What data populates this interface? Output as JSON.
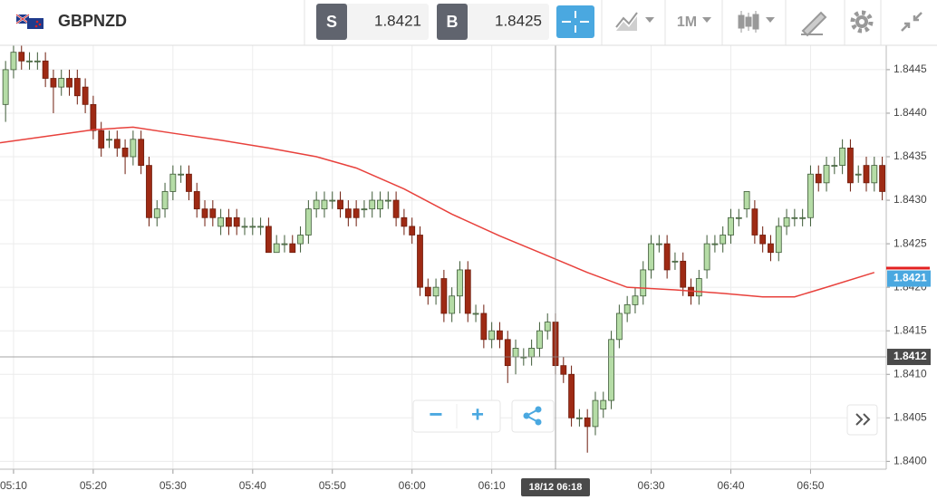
{
  "toolbar": {
    "symbol": "GBPNZD",
    "sell": {
      "label": "S",
      "price": "1.8421"
    },
    "buy": {
      "label": "B",
      "price": "1.8425"
    },
    "timeframe": "1M"
  },
  "zoom_controls": {
    "zoom_out": "−",
    "zoom_in": "+"
  },
  "chart_data": {
    "type": "candlestick",
    "x": [
      309,
      310,
      311,
      312,
      313,
      314,
      315,
      316,
      317,
      318,
      319,
      320,
      321,
      322,
      323,
      324,
      325,
      326,
      327,
      328,
      329,
      330,
      331,
      332,
      333,
      334,
      335,
      336,
      337,
      338,
      339,
      340,
      341,
      342,
      343,
      344,
      345,
      346,
      347,
      348,
      349,
      350,
      351,
      352,
      353,
      354,
      355,
      356,
      357,
      358,
      359,
      360,
      361,
      362,
      363,
      364,
      365,
      366,
      367,
      368,
      369,
      370,
      371,
      372,
      373,
      374,
      375,
      376,
      377,
      378,
      379,
      380,
      381,
      382,
      383,
      384,
      385,
      386,
      387,
      388,
      389,
      390,
      391,
      392,
      393,
      394,
      395,
      396,
      397,
      398,
      399,
      400,
      401,
      402,
      403,
      404,
      405,
      406,
      407,
      408,
      409,
      410,
      411,
      412,
      413,
      414,
      415,
      416,
      417,
      418,
      419
    ],
    "open": [
      1.8441,
      1.8445,
      1.8447,
      1.8446,
      1.8446,
      1.8446,
      1.8444,
      1.8443,
      1.8444,
      1.8444,
      1.8443,
      1.8441,
      1.8438,
      1.8437,
      1.8437,
      1.8436,
      1.8435,
      1.8437,
      1.8434,
      1.8428,
      1.8429,
      1.8431,
      1.8433,
      1.8433,
      1.8431,
      1.8429,
      1.8429,
      1.8427,
      1.8428,
      1.8428,
      1.8427,
      1.8427,
      1.8427,
      1.8427,
      1.8424,
      1.8425,
      1.8425,
      1.8425,
      1.8426,
      1.8429,
      1.8429,
      1.843,
      1.843,
      1.8429,
      1.8429,
      1.8429,
      1.8429,
      1.8429,
      1.843,
      1.843,
      1.8428,
      1.8427,
      1.8426,
      1.842,
      1.8419,
      1.8421,
      1.8417,
      1.8419,
      1.8422,
      1.8417,
      1.8417,
      1.8414,
      1.8415,
      1.8414,
      1.8412,
      1.8412,
      1.8412,
      1.8413,
      1.8415,
      1.8416,
      1.8411,
      1.841,
      1.8405,
      1.8405,
      1.8404,
      1.8406,
      1.8407,
      1.8414,
      1.8417,
      1.8418,
      1.8419,
      1.8422,
      1.8425,
      1.8425,
      1.8423,
      1.8423,
      1.842,
      1.8419,
      1.8422,
      1.8425,
      1.8425,
      1.8426,
      1.8428,
      1.8429,
      1.8429,
      1.8426,
      1.8425,
      1.8424,
      1.8427,
      1.8428,
      1.8428,
      1.8428,
      1.8433,
      1.8432,
      1.8434,
      1.8434,
      1.8436,
      1.8433,
      1.8434,
      1.8432,
      1.8434
    ],
    "high": [
      1.8446,
      1.8448,
      1.8448,
      1.8447,
      1.8447,
      1.8447,
      1.8445,
      1.8445,
      1.8445,
      1.8445,
      1.8444,
      1.8442,
      1.8439,
      1.8438,
      1.8438,
      1.8437,
      1.8438,
      1.8438,
      1.8435,
      1.843,
      1.8432,
      1.8434,
      1.8434,
      1.8434,
      1.8432,
      1.843,
      1.843,
      1.8429,
      1.8429,
      1.8429,
      1.8428,
      1.8428,
      1.8428,
      1.8428,
      1.8426,
      1.8426,
      1.8426,
      1.8427,
      1.843,
      1.8431,
      1.8431,
      1.8431,
      1.8431,
      1.843,
      1.843,
      1.843,
      1.8431,
      1.8431,
      1.8431,
      1.8431,
      1.8429,
      1.8428,
      1.8427,
      1.8421,
      1.8421,
      1.8422,
      1.842,
      1.8423,
      1.8423,
      1.8418,
      1.8418,
      1.8416,
      1.8416,
      1.8415,
      1.8414,
      1.8413,
      1.8414,
      1.8416,
      1.8417,
      1.8417,
      1.8412,
      1.8411,
      1.8406,
      1.8406,
      1.8408,
      1.8408,
      1.8415,
      1.8418,
      1.8419,
      1.842,
      1.8423,
      1.8426,
      1.8426,
      1.8426,
      1.8424,
      1.8424,
      1.8421,
      1.8422,
      1.8426,
      1.8426,
      1.8427,
      1.8429,
      1.8429,
      1.8431,
      1.843,
      1.8427,
      1.8426,
      1.8428,
      1.8429,
      1.8429,
      1.8429,
      1.8434,
      1.8434,
      1.8435,
      1.8435,
      1.8437,
      1.8437,
      1.8434,
      1.8435,
      1.8435,
      1.8435
    ],
    "low": [
      1.8439,
      1.8444,
      1.8445,
      1.8445,
      1.8445,
      1.8443,
      1.844,
      1.8442,
      1.8442,
      1.8441,
      1.844,
      1.8437,
      1.8435,
      1.8436,
      1.8435,
      1.8433,
      1.8434,
      1.8433,
      1.8427,
      1.8427,
      1.8428,
      1.843,
      1.8432,
      1.843,
      1.8428,
      1.8427,
      1.8427,
      1.8426,
      1.8426,
      1.8426,
      1.8426,
      1.8426,
      1.8426,
      1.8424,
      1.8424,
      1.8424,
      1.8424,
      1.8424,
      1.8425,
      1.8428,
      1.8428,
      1.8429,
      1.8428,
      1.8427,
      1.8427,
      1.8428,
      1.8428,
      1.8428,
      1.8429,
      1.8427,
      1.8426,
      1.8425,
      1.8419,
      1.8418,
      1.8418,
      1.8416,
      1.8416,
      1.8417,
      1.8416,
      1.8416,
      1.8413,
      1.8413,
      1.8413,
      1.8409,
      1.841,
      1.8411,
      1.8411,
      1.8412,
      1.8414,
      1.841,
      1.8409,
      1.8404,
      1.8404,
      1.8401,
      1.8403,
      1.8405,
      1.8406,
      1.8413,
      1.8416,
      1.8417,
      1.8418,
      1.8421,
      1.8424,
      1.8421,
      1.8422,
      1.8419,
      1.8418,
      1.8418,
      1.8421,
      1.8424,
      1.8424,
      1.8425,
      1.8427,
      1.8428,
      1.8425,
      1.8424,
      1.8423,
      1.8423,
      1.8426,
      1.8427,
      1.8427,
      1.8427,
      1.8431,
      1.8431,
      1.8433,
      1.8433,
      1.8431,
      1.8432,
      1.8431,
      1.8431,
      1.843
    ],
    "close": [
      1.8445,
      1.8447,
      1.8446,
      1.8446,
      1.8446,
      1.8444,
      1.8443,
      1.8444,
      1.8443,
      1.8442,
      1.8441,
      1.8438,
      1.8436,
      1.8437,
      1.8436,
      1.8435,
      1.8437,
      1.8434,
      1.8428,
      1.8429,
      1.8431,
      1.8433,
      1.8433,
      1.8431,
      1.8429,
      1.8428,
      1.8428,
      1.8428,
      1.8427,
      1.8427,
      1.8427,
      1.8427,
      1.8427,
      1.8424,
      1.8425,
      1.8425,
      1.8424,
      1.8426,
      1.8429,
      1.843,
      1.843,
      1.843,
      1.8429,
      1.8428,
      1.8428,
      1.8429,
      1.843,
      1.843,
      1.843,
      1.8428,
      1.8427,
      1.8426,
      1.842,
      1.8419,
      1.842,
      1.8417,
      1.8419,
      1.8422,
      1.8417,
      1.8417,
      1.8414,
      1.8415,
      1.8414,
      1.8411,
      1.8413,
      1.8412,
      1.8413,
      1.8415,
      1.8416,
      1.8411,
      1.841,
      1.8405,
      1.8405,
      1.8404,
      1.8407,
      1.8407,
      1.8414,
      1.8417,
      1.8418,
      1.8419,
      1.8422,
      1.8425,
      1.8425,
      1.8422,
      1.8423,
      1.842,
      1.8419,
      1.8421,
      1.8425,
      1.8425,
      1.8426,
      1.8428,
      1.8428,
      1.8431,
      1.8426,
      1.8425,
      1.8424,
      1.8427,
      1.8428,
      1.8428,
      1.8428,
      1.8433,
      1.8432,
      1.8434,
      1.8434,
      1.8436,
      1.8432,
      1.8433,
      1.8432,
      1.8434,
      1.8431
    ],
    "up_color": "#b5dca6",
    "down_color": "#9e2a14",
    "xlim": [
      308.3,
      419.5
    ],
    "xticks": [
      {
        "value": 310,
        "label": "05:10"
      },
      {
        "value": 320,
        "label": "05:20"
      },
      {
        "value": 330,
        "label": "05:30"
      },
      {
        "value": 340,
        "label": "05:40"
      },
      {
        "value": 350,
        "label": "05:50"
      },
      {
        "value": 360,
        "label": "06:00"
      },
      {
        "value": 370,
        "label": "06:10"
      },
      {
        "value": 390,
        "label": "06:30"
      },
      {
        "value": 400,
        "label": "06:40"
      },
      {
        "value": 410,
        "label": "06:50"
      }
    ],
    "ylim": [
      1.83991,
      1.84478
    ],
    "yticks": [
      {
        "value": 1.84,
        "label": "1.8400"
      },
      1.8405,
      {
        "value": 1.841,
        "label": "1.8410"
      },
      1.8415,
      {
        "value": 1.842,
        "label": "1.8420"
      },
      1.8425,
      {
        "value": 1.843,
        "label": "1.8430"
      },
      1.8435,
      {
        "value": 1.844,
        "label": "1.8440"
      },
      1.8445
    ],
    "grid": true,
    "moving_average": {
      "color": "#e8413c",
      "x": [
        308.3,
        320,
        325,
        330,
        336,
        342,
        348,
        353,
        359,
        365,
        371,
        376,
        382,
        387,
        393,
        399,
        404,
        408,
        412,
        418
      ],
      "values": [
        1.84366,
        1.84381,
        1.84384,
        1.84377,
        1.84369,
        1.8436,
        1.8435,
        1.84337,
        1.84313,
        1.84284,
        1.84259,
        1.8424,
        1.84217,
        1.842,
        1.84197,
        1.84193,
        1.84189,
        1.84189,
        1.842,
        1.84217
      ]
    },
    "ask_line": {
      "value": 1.84222,
      "color": "#e32020"
    },
    "price_marker": {
      "value": 1.8421,
      "label": "1.8421",
      "color": "#4aa8e0"
    },
    "crosshair": {
      "x": {
        "value": 378,
        "label": "18/12 06:18"
      },
      "y": {
        "value": 1.8412,
        "label": "1.8412"
      }
    }
  }
}
